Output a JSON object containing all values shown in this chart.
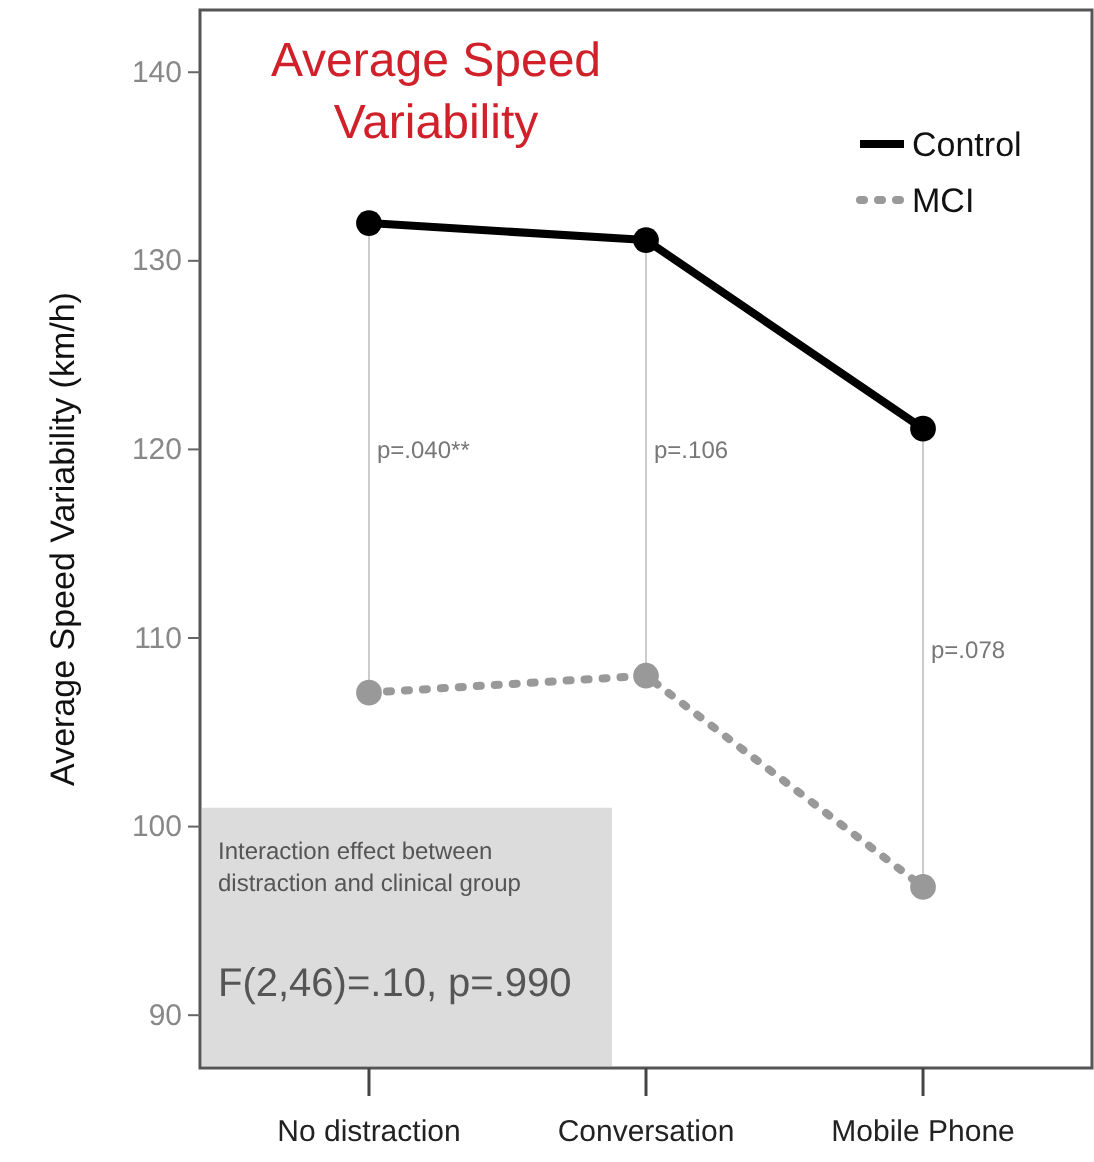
{
  "chart_data": {
    "type": "line",
    "title": "Average Speed Variability",
    "ylabel": "Average Speed Variability (km/h)",
    "categories": [
      "No distraction",
      "Conversation",
      "Mobile Phone"
    ],
    "series": [
      {
        "name": "Control",
        "color": "#000000",
        "values": [
          132.0,
          131.1,
          121.1
        ],
        "line_style": "solid"
      },
      {
        "name": "MCI",
        "color": "#999999",
        "values": [
          107.1,
          108.0,
          96.8
        ],
        "line_style": "dotted"
      }
    ],
    "ylim": [
      87.2,
      143.3
    ],
    "yticks": [
      90,
      100,
      110,
      120,
      130,
      140
    ],
    "marker": "circle",
    "legend": "top right",
    "grid": false,
    "annotations": [
      "p=.040**",
      "p=.106",
      "p=.078",
      "Interaction effect between distraction and clinical group",
      "F(2,46)=.10, p=.990"
    ]
  }
}
